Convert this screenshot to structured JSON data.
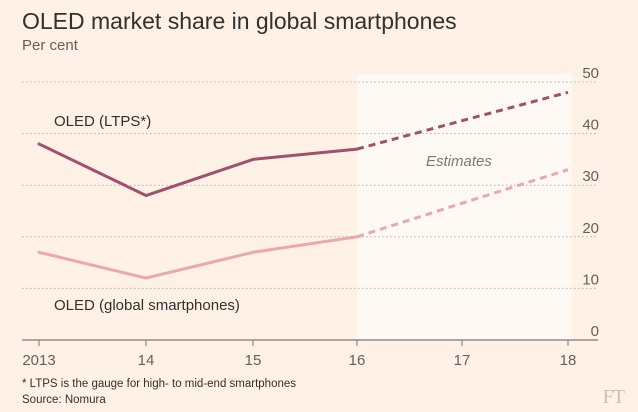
{
  "chart_data": {
    "type": "line",
    "title": "OLED market share in global smartphones",
    "subtitle": "Per cent",
    "x": [
      "2013",
      "14",
      "15",
      "16",
      "17",
      "18"
    ],
    "ylim": [
      0,
      50
    ],
    "yticks": [
      0,
      10,
      20,
      30,
      40,
      50
    ],
    "grid": true,
    "estimate_start": "16",
    "estimate_label": "Estimates",
    "series": [
      {
        "name": "OLED (LTPS*)",
        "color": "#a0506e",
        "values": [
          38,
          28,
          35,
          37,
          42.5,
          48
        ]
      },
      {
        "name": "OLED (global smartphones)",
        "color": "#eba7ab",
        "values": [
          17,
          12,
          17,
          20,
          26.5,
          33
        ]
      }
    ],
    "footnote": "* LTPS is the gauge for high- to mid-end smartphones",
    "source": "Source: Nomura",
    "logo": "FT"
  },
  "colors": {
    "background": "#fff1e5",
    "estimate_band": "#fff9f4",
    "grid": "#b8aca3"
  }
}
